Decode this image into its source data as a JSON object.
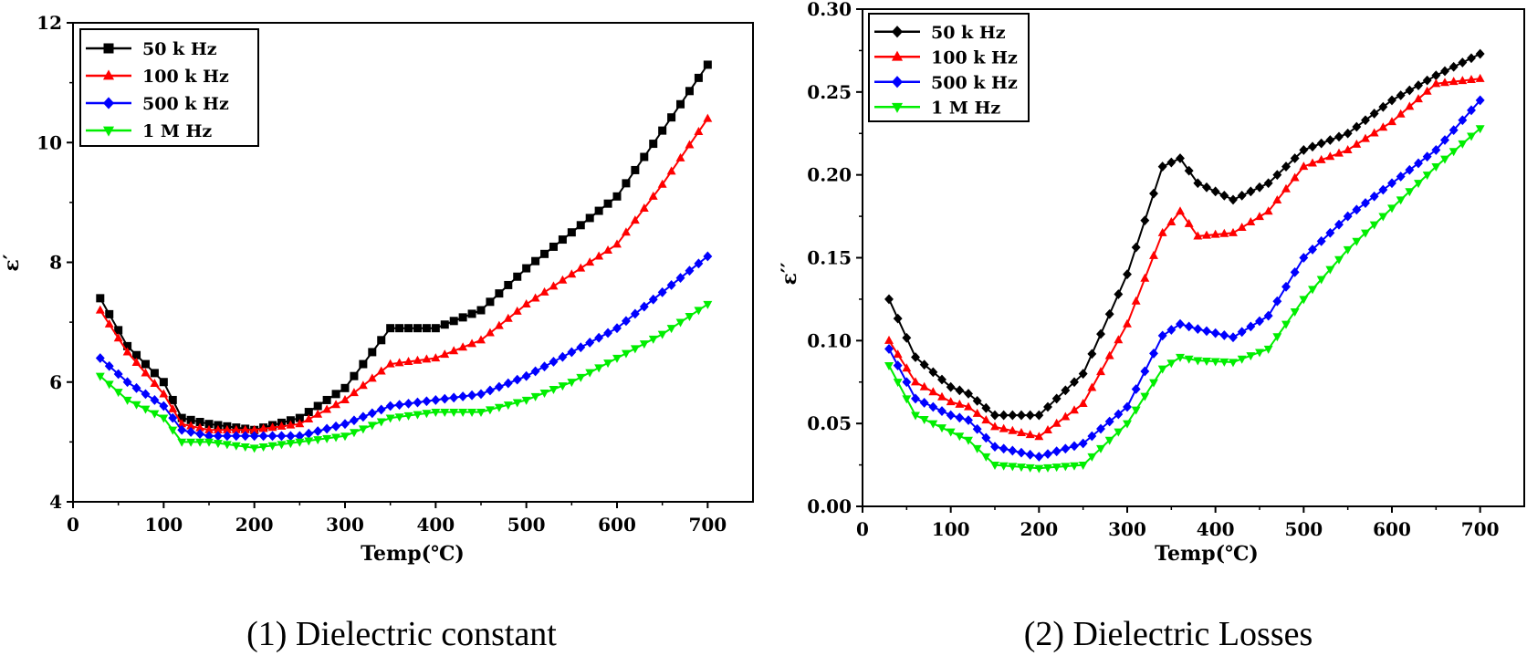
{
  "chart_data": [
    {
      "type": "line",
      "caption": "(1) Dielectric constant",
      "xlabel": "Temp(℃)",
      "ylabel": "ε′",
      "xlim": [
        0,
        750
      ],
      "ylim": [
        4,
        12
      ],
      "xticks": [
        "0",
        "100",
        "200",
        "300",
        "400",
        "500",
        "600",
        "700"
      ],
      "yticks": [
        "4",
        "6",
        "8",
        "10",
        "12"
      ],
      "legend_position": "top-left",
      "x": [
        30,
        60,
        100,
        120,
        150,
        200,
        250,
        300,
        350,
        400,
        450,
        500,
        550,
        600,
        650,
        700
      ],
      "series": [
        {
          "name": "50 k Hz",
          "color": "#000000",
          "marker": "square",
          "values": [
            7.4,
            6.6,
            6.0,
            5.4,
            5.3,
            5.2,
            5.4,
            5.9,
            6.9,
            6.9,
            7.2,
            7.9,
            8.5,
            9.1,
            10.2,
            11.3
          ]
        },
        {
          "name": "100 k Hz",
          "color": "#ff0000",
          "marker": "triangle",
          "values": [
            7.2,
            6.5,
            5.8,
            5.3,
            5.2,
            5.2,
            5.3,
            5.7,
            6.3,
            6.4,
            6.7,
            7.3,
            7.8,
            8.3,
            9.3,
            10.4
          ]
        },
        {
          "name": "500 k Hz",
          "color": "#0000ff",
          "marker": "diamond",
          "values": [
            6.4,
            6.0,
            5.6,
            5.2,
            5.1,
            5.1,
            5.1,
            5.3,
            5.6,
            5.7,
            5.8,
            6.1,
            6.5,
            6.9,
            7.5,
            8.1
          ]
        },
        {
          "name": "1 M Hz",
          "color": "#00ee00",
          "marker": "triangle-down",
          "values": [
            6.1,
            5.7,
            5.4,
            5.0,
            5.0,
            4.9,
            5.0,
            5.1,
            5.4,
            5.5,
            5.5,
            5.7,
            6.0,
            6.4,
            6.8,
            7.3
          ]
        }
      ]
    },
    {
      "type": "line",
      "caption": "(2) Dielectric Losses",
      "xlabel": "Temp(℃)",
      "ylabel": "ε′′",
      "xlim": [
        0,
        750
      ],
      "ylim": [
        0,
        0.3
      ],
      "xticks": [
        "0",
        "100",
        "200",
        "300",
        "400",
        "500",
        "600",
        "700"
      ],
      "yticks": [
        "0.00",
        "0.05",
        "0.10",
        "0.15",
        "0.20",
        "0.25",
        "0.30"
      ],
      "legend_position": "top-left",
      "x": [
        30,
        60,
        100,
        120,
        150,
        200,
        250,
        300,
        340,
        360,
        380,
        420,
        460,
        500,
        550,
        600,
        650,
        700
      ],
      "series": [
        {
          "name": "50 k Hz",
          "color": "#000000",
          "marker": "diamond",
          "values": [
            0.125,
            0.09,
            0.072,
            0.068,
            0.055,
            0.055,
            0.08,
            0.14,
            0.205,
            0.21,
            0.195,
            0.185,
            0.195,
            0.215,
            0.225,
            0.245,
            0.26,
            0.273
          ]
        },
        {
          "name": "100 k Hz",
          "color": "#ff0000",
          "marker": "triangle",
          "values": [
            0.1,
            0.075,
            0.063,
            0.06,
            0.048,
            0.042,
            0.062,
            0.11,
            0.165,
            0.178,
            0.163,
            0.165,
            0.178,
            0.205,
            0.215,
            0.232,
            0.255,
            0.258
          ]
        },
        {
          "name": "500 k Hz",
          "color": "#0000ff",
          "marker": "diamond",
          "values": [
            0.095,
            0.065,
            0.055,
            0.052,
            0.036,
            0.03,
            0.038,
            0.06,
            0.103,
            0.11,
            0.107,
            0.102,
            0.115,
            0.15,
            0.175,
            0.195,
            0.215,
            0.245
          ]
        },
        {
          "name": "1 M Hz",
          "color": "#00ee00",
          "marker": "triangle-down",
          "values": [
            0.085,
            0.055,
            0.045,
            0.04,
            0.025,
            0.023,
            0.025,
            0.05,
            0.083,
            0.09,
            0.088,
            0.087,
            0.095,
            0.125,
            0.155,
            0.18,
            0.205,
            0.228
          ]
        }
      ]
    }
  ]
}
